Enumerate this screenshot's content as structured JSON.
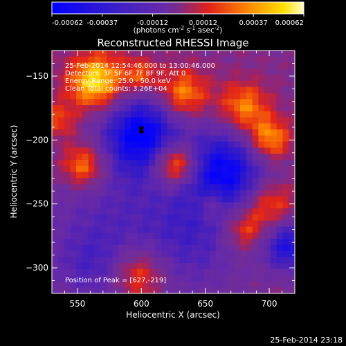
{
  "chart_data": {
    "type": "heatmap",
    "title": "Reconstructed RHESSI Image",
    "xlabel": "Heliocentric X (arcsec)",
    "ylabel": "Heliocentric Y (arcsec)",
    "xlim": [
      530,
      720
    ],
    "ylim": [
      -320,
      -130
    ],
    "xticks": [
      550,
      600,
      650,
      700
    ],
    "yticks": [
      -300,
      -250,
      -200,
      -150
    ],
    "colorbar": {
      "ticks": [
        "-0.00062",
        "-0.00037",
        "-0.00012",
        "0.00012",
        "0.00037",
        "0.00062"
      ],
      "unit_main": "(photons cm",
      "unit_exp1": "-2",
      "unit_mid": " s",
      "unit_exp2": "-1",
      "unit_end": " asec",
      "unit_exp3": "-2",
      "unit_close": ")",
      "range": [
        -0.00062,
        0.00062
      ]
    },
    "annotations": [
      "25-Feb-2014 12:54:46.000 to 13:00:46.000",
      "Detectors: 3F 5F 6F 7F 8F 9F, Att 0",
      "Energy Range: 25.0 - 50.0 keV",
      "Clean     Total counts: 3.26E+04"
    ],
    "peak_label": "Position of Peak = [627,-219]",
    "peak_position": [
      627,
      -219
    ],
    "features": [
      {
        "x": 600,
        "y": -195,
        "amp": -1.0,
        "r": 22
      },
      {
        "x": 665,
        "y": -225,
        "amp": -0.95,
        "r": 24
      },
      {
        "x": 715,
        "y": -283,
        "amp": -0.8,
        "r": 14
      },
      {
        "x": 575,
        "y": -260,
        "amp": -0.35,
        "r": 40
      },
      {
        "x": 640,
        "y": -280,
        "amp": -0.4,
        "r": 30
      },
      {
        "x": 560,
        "y": -300,
        "amp": -0.3,
        "r": 20
      },
      {
        "x": 627,
        "y": -219,
        "amp": 1.0,
        "r": 12
      },
      {
        "x": 565,
        "y": -155,
        "amp": 0.85,
        "r": 16
      },
      {
        "x": 555,
        "y": -220,
        "amp": 0.7,
        "r": 13
      },
      {
        "x": 632,
        "y": -165,
        "amp": 0.65,
        "r": 14
      },
      {
        "x": 680,
        "y": -175,
        "amp": 0.6,
        "r": 14
      },
      {
        "x": 700,
        "y": -200,
        "amp": 0.7,
        "r": 12
      },
      {
        "x": 700,
        "y": -250,
        "amp": 0.55,
        "r": 14
      },
      {
        "x": 680,
        "y": -270,
        "amp": 0.55,
        "r": 12
      },
      {
        "x": 598,
        "y": -305,
        "amp": 0.6,
        "r": 15
      },
      {
        "x": 535,
        "y": -185,
        "amp": 0.4,
        "r": 10
      },
      {
        "x": 600,
        "y": -150,
        "amp": 0.45,
        "r": 10
      },
      {
        "x": 655,
        "y": -250,
        "amp": 0.4,
        "r": 9
      }
    ]
  },
  "footer": {
    "timestamp": "25-Feb-2014 23:18"
  }
}
